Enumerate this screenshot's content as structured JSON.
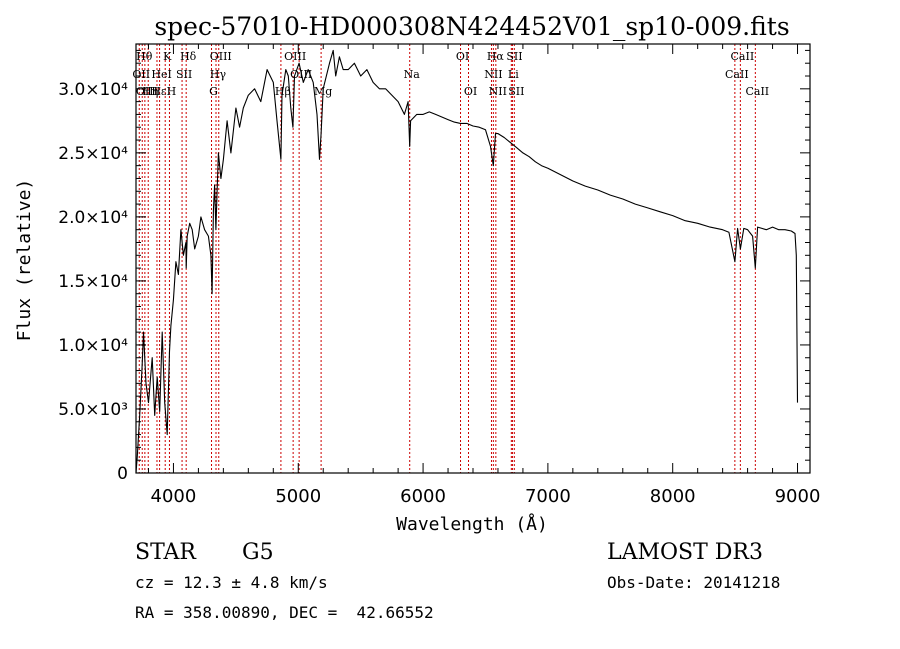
{
  "chart_data": {
    "type": "line",
    "title": "spec-57010-HD000308N424452V01_sp10-009.fits",
    "xlabel": "Wavelength (Å)",
    "ylabel": "Flux (relative)",
    "xlim": [
      3700,
      9100
    ],
    "ylim": [
      0,
      33500
    ],
    "x_ticks": [
      {
        "value": 4000,
        "label": "4000"
      },
      {
        "value": 5000,
        "label": "5000"
      },
      {
        "value": 6000,
        "label": "6000"
      },
      {
        "value": 7000,
        "label": "7000"
      },
      {
        "value": 8000,
        "label": "8000"
      },
      {
        "value": 9000,
        "label": "9000"
      }
    ],
    "y_ticks": [
      {
        "value": 0,
        "label": "0"
      },
      {
        "value": 5000,
        "label": "5.0×10³"
      },
      {
        "value": 10000,
        "label": "1.0×10⁴"
      },
      {
        "value": 15000,
        "label": "1.5×10⁴"
      },
      {
        "value": 20000,
        "label": "2.0×10⁴"
      },
      {
        "value": 25000,
        "label": "2.5×10⁴"
      },
      {
        "value": 30000,
        "label": "3.0×10⁴"
      }
    ],
    "grid": false,
    "series": [
      {
        "name": "spectrum",
        "color": "#000000",
        "x": [
          3700,
          3710,
          3730,
          3750,
          3760,
          3780,
          3800,
          3830,
          3850,
          3870,
          3890,
          3910,
          3930,
          3950,
          3968,
          3980,
          4000,
          4020,
          4040,
          4060,
          4080,
          4100,
          4102,
          4110,
          4130,
          4150,
          4170,
          4200,
          4220,
          4250,
          4280,
          4300,
          4310,
          4320,
          4330,
          4340,
          4350,
          4360,
          4380,
          4400,
          4430,
          4460,
          4500,
          4530,
          4560,
          4600,
          4650,
          4700,
          4750,
          4800,
          4830,
          4861,
          4870,
          4900,
          4920,
          4940,
          4957,
          4970,
          5007,
          5040,
          5080,
          5120,
          5150,
          5170,
          5183,
          5200,
          5250,
          5280,
          5300,
          5330,
          5360,
          5400,
          5450,
          5500,
          5550,
          5600,
          5650,
          5700,
          5750,
          5800,
          5850,
          5880,
          5893,
          5900,
          5950,
          6000,
          6050,
          6100,
          6150,
          6200,
          6250,
          6300,
          6350,
          6400,
          6450,
          6500,
          6540,
          6563,
          6580,
          6600,
          6650,
          6700,
          6750,
          6800,
          6850,
          6900,
          6950,
          7000,
          7100,
          7200,
          7300,
          7400,
          7500,
          7600,
          7700,
          7800,
          7900,
          8000,
          8100,
          8200,
          8300,
          8400,
          8450,
          8498,
          8520,
          8542,
          8570,
          8600,
          8640,
          8662,
          8680,
          8750,
          8800,
          8850,
          8900,
          8950,
          8980,
          8990,
          9000
        ],
        "values": [
          0,
          1200,
          4500,
          8500,
          11000,
          7000,
          5500,
          9000,
          4500,
          7500,
          4800,
          11000,
          5500,
          3000,
          9500,
          11500,
          13500,
          16500,
          15500,
          19000,
          17000,
          18000,
          16000,
          18500,
          19500,
          19000,
          17500,
          18500,
          20000,
          19000,
          18500,
          17000,
          14000,
          20500,
          22500,
          19000,
          22000,
          25000,
          23000,
          24500,
          27500,
          25000,
          28500,
          27000,
          28500,
          29500,
          30000,
          29000,
          31500,
          30500,
          27500,
          24500,
          29500,
          31500,
          31000,
          28500,
          27000,
          31000,
          32000,
          30500,
          31500,
          30500,
          28000,
          24500,
          26500,
          30000,
          32000,
          33000,
          31000,
          32500,
          31500,
          31500,
          32000,
          31000,
          31500,
          30500,
          30000,
          30000,
          29500,
          29000,
          28000,
          29000,
          25500,
          27500,
          28000,
          28000,
          28200,
          28000,
          27800,
          27600,
          27400,
          27300,
          27300,
          27100,
          27000,
          26800,
          25500,
          24000,
          26500,
          26500,
          26200,
          25800,
          25400,
          25000,
          24700,
          24300,
          24000,
          23800,
          23300,
          22800,
          22400,
          22100,
          21700,
          21400,
          21000,
          20700,
          20400,
          20100,
          19700,
          19500,
          19200,
          19000,
          18800,
          16500,
          19100,
          17500,
          19100,
          19000,
          18500,
          16000,
          19200,
          19000,
          19200,
          19000,
          19000,
          18900,
          18700,
          17000,
          5500
        ]
      }
    ],
    "line_markers": [
      {
        "wavelength": 3726,
        "label": "OII",
        "row": 1
      },
      {
        "wavelength": 3750,
        "label": "Hθ",
        "row": 0
      },
      {
        "wavelength": 3771,
        "label": "OIII",
        "row": 2
      },
      {
        "wavelength": 3798,
        "label": "Hη",
        "row": 2
      },
      {
        "wavelength": 3868,
        "label": "Hε",
        "row": 2
      },
      {
        "wavelength": 3889,
        "label": "HeI",
        "row": 1
      },
      {
        "wavelength": 3934,
        "label": "K",
        "row": 0
      },
      {
        "wavelength": 3968,
        "label": "H",
        "row": 2
      },
      {
        "wavelength": 4069,
        "label": "SII",
        "row": 1
      },
      {
        "wavelength": 4102,
        "label": "Hδ",
        "row": 0
      },
      {
        "wavelength": 4305,
        "label": "G",
        "row": 2
      },
      {
        "wavelength": 4341,
        "label": "Hγ",
        "row": 1
      },
      {
        "wavelength": 4363,
        "label": "OIII",
        "row": 0
      },
      {
        "wavelength": 4861,
        "label": "Hβ",
        "row": 2
      },
      {
        "wavelength": 4959,
        "label": "OIII",
        "row": 0
      },
      {
        "wavelength": 5007,
        "label": "OIII",
        "row": 1
      },
      {
        "wavelength": 5183,
        "label": "Mg",
        "row": 2
      },
      {
        "wavelength": 5893,
        "label": "Na",
        "row": 1
      },
      {
        "wavelength": 6300,
        "label": "OI",
        "row": 0
      },
      {
        "wavelength": 6364,
        "label": "OI",
        "row": 2
      },
      {
        "wavelength": 6548,
        "label": "NII",
        "row": 1
      },
      {
        "wavelength": 6563,
        "label": "Hα",
        "row": 0
      },
      {
        "wavelength": 6583,
        "label": "NII",
        "row": 2
      },
      {
        "wavelength": 6707,
        "label": "Li",
        "row": 1
      },
      {
        "wavelength": 6716,
        "label": "SII",
        "row": 0
      },
      {
        "wavelength": 6731,
        "label": "SII",
        "row": 2
      },
      {
        "wavelength": 8498,
        "label": "CaII",
        "row": 1
      },
      {
        "wavelength": 8542,
        "label": "CaII",
        "row": 0
      },
      {
        "wavelength": 8662,
        "label": "CaII",
        "row": 2
      }
    ],
    "colors": {
      "spectrum": "#000000",
      "line_markers": "#cc0000",
      "axes": "#000000"
    }
  },
  "info": {
    "object_class": "STAR",
    "subclass": "G5",
    "survey": "LAMOST DR3",
    "redshift": "cz = 12.3 ± 4.8 km/s",
    "obs_date": "Obs-Date: 20141218",
    "coordinates": "RA = 358.00890, DEC =  42.66552"
  }
}
